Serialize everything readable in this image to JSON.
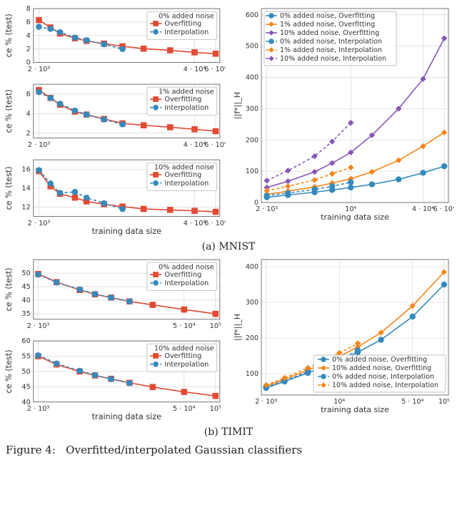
{
  "colors": {
    "red": "#e24a33",
    "blue": "#348abd",
    "orange": "#fbc15e",
    "orange2": "#f58518",
    "purple": "#8757b5",
    "grid": "#d0d0d0",
    "spine": "#555555",
    "text": "#333333",
    "bg": "#ffffff"
  },
  "style": {
    "line_width": 1.6,
    "marker_size": 4.2,
    "dash_pattern": "4 3",
    "tick_font": 9.5,
    "label_font": 11,
    "legend_font": 9.5
  },
  "mnist": {
    "caption": "(a) MNIST",
    "left": [
      {
        "title": "0% added noise",
        "xlabel": null,
        "ylabel": "ce % (test)",
        "xscale": "log",
        "xlim": [
          1800,
          65000
        ],
        "ylim": [
          0,
          8
        ],
        "ytick_step": 2,
        "xticks": [
          2000,
          40000,
          60000
        ],
        "xticklabels": [
          "2 · 10³",
          "4 · 10⁴",
          "6 · 10⁴"
        ],
        "legend_pos": "top-right",
        "series": [
          {
            "name": "Overfitting",
            "color": "red",
            "style": "solid",
            "marker": "sq",
            "x": [
              2000,
              2500,
              3000,
              4000,
              5000,
              7000,
              10000,
              15000,
              25000,
              40000,
              60000
            ],
            "y": [
              6.3,
              5.2,
              4.3,
              3.6,
              3.2,
              2.8,
              2.4,
              2.05,
              1.8,
              1.5,
              1.3
            ]
          },
          {
            "name": "Interpolation",
            "color": "blue",
            "style": "dash",
            "marker": "circ",
            "x": [
              2000,
              2500,
              3000,
              4000,
              5000,
              7000,
              10000
            ],
            "y": [
              5.3,
              5.0,
              4.5,
              3.7,
              3.3,
              2.7,
              2.0
            ]
          }
        ]
      },
      {
        "title": "1% added noise",
        "xlabel": null,
        "ylabel": "ce % (test)",
        "xscale": "log",
        "xlim": [
          1800,
          65000
        ],
        "ylim": [
          1.5,
          7
        ],
        "ytick_values": [
          2,
          4,
          6
        ],
        "xticks": [
          2000,
          40000,
          60000
        ],
        "xticklabels": [
          "2 · 10³",
          "4 · 10⁴",
          "6 · 10⁴"
        ],
        "legend_pos": "top-right",
        "series": [
          {
            "name": "Overfitting",
            "color": "red",
            "style": "solid",
            "marker": "sq",
            "x": [
              2000,
              2500,
              3000,
              4000,
              5000,
              7000,
              10000,
              15000,
              25000,
              40000,
              60000
            ],
            "y": [
              6.4,
              5.6,
              4.9,
              4.2,
              3.9,
              3.45,
              3.0,
              2.8,
              2.6,
              2.4,
              2.2
            ]
          },
          {
            "name": "Interpolation",
            "color": "blue",
            "style": "dash",
            "marker": "circ",
            "x": [
              2000,
              2500,
              3000,
              4000,
              5000,
              7000,
              10000
            ],
            "y": [
              6.2,
              5.6,
              5.0,
              4.3,
              3.9,
              3.4,
              2.9
            ]
          }
        ]
      },
      {
        "title": "10% added noise",
        "xlabel": "training data size",
        "ylabel": "ce % (test)",
        "xscale": "log",
        "xlim": [
          1800,
          65000
        ],
        "ylim": [
          11,
          17
        ],
        "ytick_values": [
          12,
          14,
          16
        ],
        "xticks": [
          2000,
          40000,
          60000
        ],
        "xticklabels": [
          "2 · 10³",
          "4 · 10⁴",
          "6 · 10⁴"
        ],
        "legend_pos": "top-right",
        "series": [
          {
            "name": "Overfitting",
            "color": "red",
            "style": "solid",
            "marker": "sq",
            "x": [
              2000,
              2500,
              3000,
              4000,
              5000,
              7000,
              10000,
              15000,
              25000,
              40000,
              60000
            ],
            "y": [
              15.8,
              14.2,
              13.4,
              13.0,
              12.6,
              12.3,
              12.05,
              11.8,
              11.7,
              11.6,
              11.5
            ]
          },
          {
            "name": "Interpolation",
            "color": "blue",
            "style": "dash",
            "marker": "circ",
            "x": [
              2000,
              2500,
              3000,
              4000,
              5000,
              7000,
              10000
            ],
            "y": [
              15.9,
              14.5,
              13.5,
              13.6,
              13.0,
              12.4,
              11.8
            ]
          }
        ]
      }
    ],
    "right": {
      "xlabel": "training data size",
      "ylabel": "||f*||_H",
      "xscale": "log",
      "xlim": [
        1800,
        65000
      ],
      "ylim": [
        0,
        620
      ],
      "ytick_step": 100,
      "xticks": [
        2000,
        10000,
        40000,
        60000
      ],
      "xticklabels": [
        "2 · 10³",
        "10⁴",
        "4 · 10⁴",
        "6 · 10⁴"
      ],
      "legend_pos": "top-left",
      "series": [
        {
          "name": "0% added noise, Overfitting",
          "color": "blue",
          "style": "solid",
          "marker": "circ",
          "x": [
            2000,
            3000,
            5000,
            7000,
            10000,
            15000,
            25000,
            40000,
            60000
          ],
          "y": [
            17,
            24,
            33,
            40,
            48,
            58,
            74,
            95,
            116
          ]
        },
        {
          "name": "1% added noise, Overfitting",
          "color": "orange2",
          "style": "solid",
          "marker": "diamond",
          "x": [
            2000,
            3000,
            5000,
            7000,
            10000,
            15000,
            25000,
            40000,
            60000
          ],
          "y": [
            26,
            36,
            50,
            62,
            76,
            98,
            135,
            180,
            224
          ]
        },
        {
          "name": "10% added noise, Overfitting",
          "color": "purple",
          "style": "solid",
          "marker": "diamond",
          "x": [
            2000,
            3000,
            5000,
            7000,
            10000,
            15000,
            25000,
            40000,
            60000
          ],
          "y": [
            48,
            68,
            98,
            126,
            160,
            215,
            300,
            395,
            525
          ]
        },
        {
          "name": "0% added noise, Interpolation",
          "color": "blue",
          "style": "dash",
          "marker": "circ",
          "x": [
            2000,
            3000,
            5000,
            7000,
            10000
          ],
          "y": [
            22,
            30,
            42,
            52,
            65
          ]
        },
        {
          "name": "1% added noise, Interpolation",
          "color": "orange2",
          "style": "dash",
          "marker": "diamond",
          "x": [
            2000,
            3000,
            5000,
            7000,
            10000
          ],
          "y": [
            38,
            52,
            72,
            92,
            112
          ]
        },
        {
          "name": "10% added noise, Interpolation",
          "color": "purple",
          "style": "dash",
          "marker": "diamond",
          "x": [
            2000,
            3000,
            5000,
            7000,
            10000
          ],
          "y": [
            70,
            102,
            148,
            195,
            255
          ]
        }
      ]
    }
  },
  "timit": {
    "caption": "(b) TIMIT",
    "left": [
      {
        "title": "0% added noise",
        "xlabel": null,
        "ylabel": "ce % (test)",
        "xscale": "log",
        "xlim": [
          1800,
          110000
        ],
        "ylim": [
          33,
          55
        ],
        "ytick_values": [
          35,
          40,
          45,
          50
        ],
        "xticks": [
          2000,
          50000,
          100000
        ],
        "xticklabels": [
          "2 · 10³",
          "5 · 10⁴",
          "10⁵"
        ],
        "legend_pos": "top-right",
        "series": [
          {
            "name": "Overfitting",
            "color": "red",
            "style": "solid",
            "marker": "sq",
            "x": [
              2000,
              3000,
              5000,
              7000,
              10000,
              15000,
              25000,
              50000,
              100000
            ],
            "y": [
              49.7,
              46.7,
              43.8,
              42.2,
              41.0,
              39.6,
              38.3,
              36.6,
              35.0
            ]
          },
          {
            "name": "Interpolation",
            "color": "blue",
            "style": "dash",
            "marker": "circ",
            "x": [
              2000,
              3000,
              5000,
              7000,
              10000,
              15000
            ],
            "y": [
              49.5,
              46.6,
              44.0,
              42.3,
              41.0,
              39.6
            ]
          }
        ]
      },
      {
        "title": "10% added noise",
        "xlabel": "training data size",
        "ylabel": "ce % (test)",
        "xscale": "log",
        "xlim": [
          1800,
          110000
        ],
        "ylim": [
          40,
          60
        ],
        "ytick_values": [
          40,
          45,
          50,
          55,
          60
        ],
        "xticks": [
          2000,
          50000,
          100000
        ],
        "xticklabels": [
          "2 · 10³",
          "5 · 10⁴",
          "10⁵"
        ],
        "legend_pos": "top-right",
        "series": [
          {
            "name": "Overfitting",
            "color": "red",
            "style": "solid",
            "marker": "sq",
            "x": [
              2000,
              3000,
              5000,
              7000,
              10000,
              15000,
              25000,
              50000,
              100000
            ],
            "y": [
              55.0,
              52.3,
              50.0,
              48.7,
              47.6,
              46.3,
              44.9,
              43.3,
              42.0
            ]
          },
          {
            "name": "Interpolation",
            "color": "blue",
            "style": "dash",
            "marker": "circ",
            "x": [
              2000,
              3000,
              5000,
              7000,
              10000,
              15000
            ],
            "y": [
              55.3,
              52.6,
              50.2,
              48.8,
              47.5,
              46.2
            ]
          }
        ]
      }
    ],
    "right": {
      "xlabel": "training data size",
      "ylabel": "||f*||_H",
      "xscale": "log",
      "xlim": [
        1800,
        110000
      ],
      "ylim": [
        40,
        420
      ],
      "ytick_values": [
        100,
        200,
        300,
        400
      ],
      "xticks": [
        2000,
        10000,
        50000,
        100000
      ],
      "xticklabels": [
        "2 · 10³",
        "10⁴",
        "5 · 10⁴",
        "10⁵"
      ],
      "legend_pos": "bottom-right",
      "series": [
        {
          "name": "0% added noise, Overfitting",
          "color": "blue",
          "style": "solid",
          "marker": "circ",
          "x": [
            2000,
            3000,
            5000,
            7000,
            10000,
            15000,
            25000,
            50000,
            100000
          ],
          "y": [
            60,
            78,
            102,
            118,
            136,
            160,
            195,
            260,
            350
          ]
        },
        {
          "name": "10% added noise, Overfitting",
          "color": "orange2",
          "style": "solid",
          "marker": "diamond",
          "x": [
            2000,
            3000,
            5000,
            7000,
            10000,
            15000,
            25000,
            50000,
            100000
          ],
          "y": [
            65,
            84,
            110,
            128,
            148,
            175,
            215,
            290,
            385
          ]
        },
        {
          "name": "0% added noise, Interpolation",
          "color": "blue",
          "style": "dash",
          "marker": "circ",
          "x": [
            2000,
            3000,
            5000,
            7000,
            10000,
            15000
          ],
          "y": [
            62,
            80,
            105,
            122,
            140,
            165
          ]
        },
        {
          "name": "10% added noise, Interpolation",
          "color": "orange2",
          "style": "dash",
          "marker": "diamond",
          "x": [
            2000,
            3000,
            5000,
            7000,
            10000,
            15000
          ],
          "y": [
            68,
            88,
            116,
            135,
            158,
            185
          ]
        }
      ]
    }
  },
  "figure_caption": "Figure 4:   Overfitted/interpolated Gaussian classifiers"
}
